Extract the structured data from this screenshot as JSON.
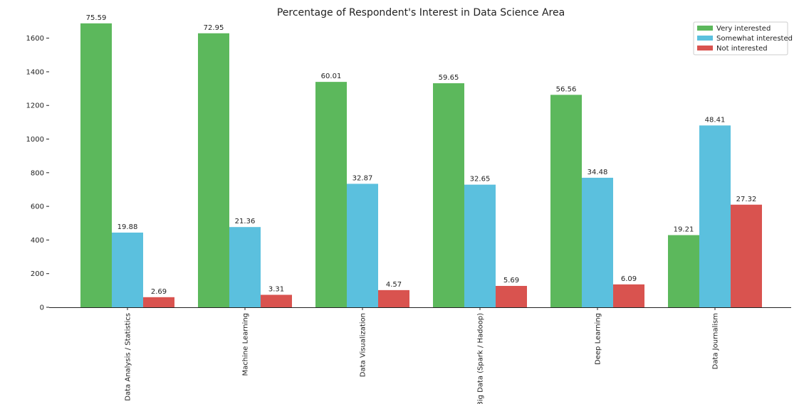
{
  "chart_data": {
    "type": "bar",
    "title": "Percentage of Respondent's Interest in Data Science Area",
    "xlabel": "",
    "ylabel": "",
    "ylim": [
      0,
      1700
    ],
    "yticks": [
      0,
      200,
      400,
      600,
      800,
      1000,
      1200,
      1400,
      1600
    ],
    "grid": false,
    "legend_position": "top-right",
    "categories": [
      "Data Analysis / Statistics",
      "Machine Learning",
      "Data Visualization",
      "Big Data (Spark / Hadoop)",
      "Deep Learning",
      "Data Journalism"
    ],
    "series": [
      {
        "name": "Very interested",
        "color": "#5cb85c",
        "values": [
          1688,
          1629,
          1340,
          1332,
          1263,
          429
        ],
        "labels": [
          "75.59",
          "72.95",
          "60.01",
          "59.65",
          "56.56",
          "19.21"
        ]
      },
      {
        "name": "Somewhat interested",
        "color": "#5bc0de",
        "values": [
          444,
          477,
          734,
          729,
          770,
          1081
        ],
        "labels": [
          "19.88",
          "21.36",
          "32.87",
          "32.65",
          "34.48",
          "48.41"
        ]
      },
      {
        "name": "Not interested",
        "color": "#d9534f",
        "values": [
          60,
          74,
          102,
          127,
          136,
          610
        ],
        "labels": [
          "2.69",
          "3.31",
          "4.57",
          "5.69",
          "6.09",
          "27.32"
        ]
      }
    ]
  }
}
